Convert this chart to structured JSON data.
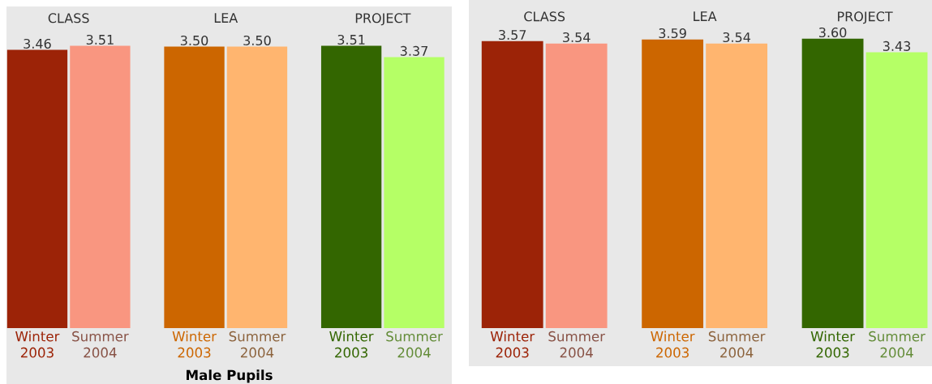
{
  "chart_data": [
    {
      "type": "bar",
      "title": "Male Pupils",
      "categories": [
        "Winter 2003",
        "Summer 2004",
        "Winter 2003",
        "Summer 2004",
        "Winter 2003",
        "Summer 2004"
      ],
      "values": [
        3.46,
        3.51,
        3.5,
        3.5,
        3.51,
        3.37
      ],
      "value_labels": [
        "3.46",
        "3.51",
        "3.50",
        "3.50",
        "3.51",
        "3.37"
      ],
      "colors": [
        "#9c2307",
        "#f99680",
        "#cc6600",
        "#ffb56f",
        "#336600",
        "#b5ff66"
      ],
      "annotations": [
        "CLASS",
        "LEA",
        "PROJECT"
      ]
    },
    {
      "type": "bar",
      "categories": [
        "Winter 2003",
        "Summer 2004",
        "Winter 2003",
        "Summer 2004",
        "Winter 2003",
        "Summer 2004"
      ],
      "values": [
        3.57,
        3.54,
        3.59,
        3.54,
        3.6,
        3.43
      ],
      "value_labels": [
        "3.57",
        "3.54",
        "3.59",
        "3.54",
        "3.60",
        "3.43"
      ],
      "colors": [
        "#9c2307",
        "#f99680",
        "#cc6600",
        "#ffb56f",
        "#336600",
        "#b5ff66"
      ],
      "annotations": [
        "CLASS",
        "LEA",
        "PROJECT"
      ]
    }
  ]
}
